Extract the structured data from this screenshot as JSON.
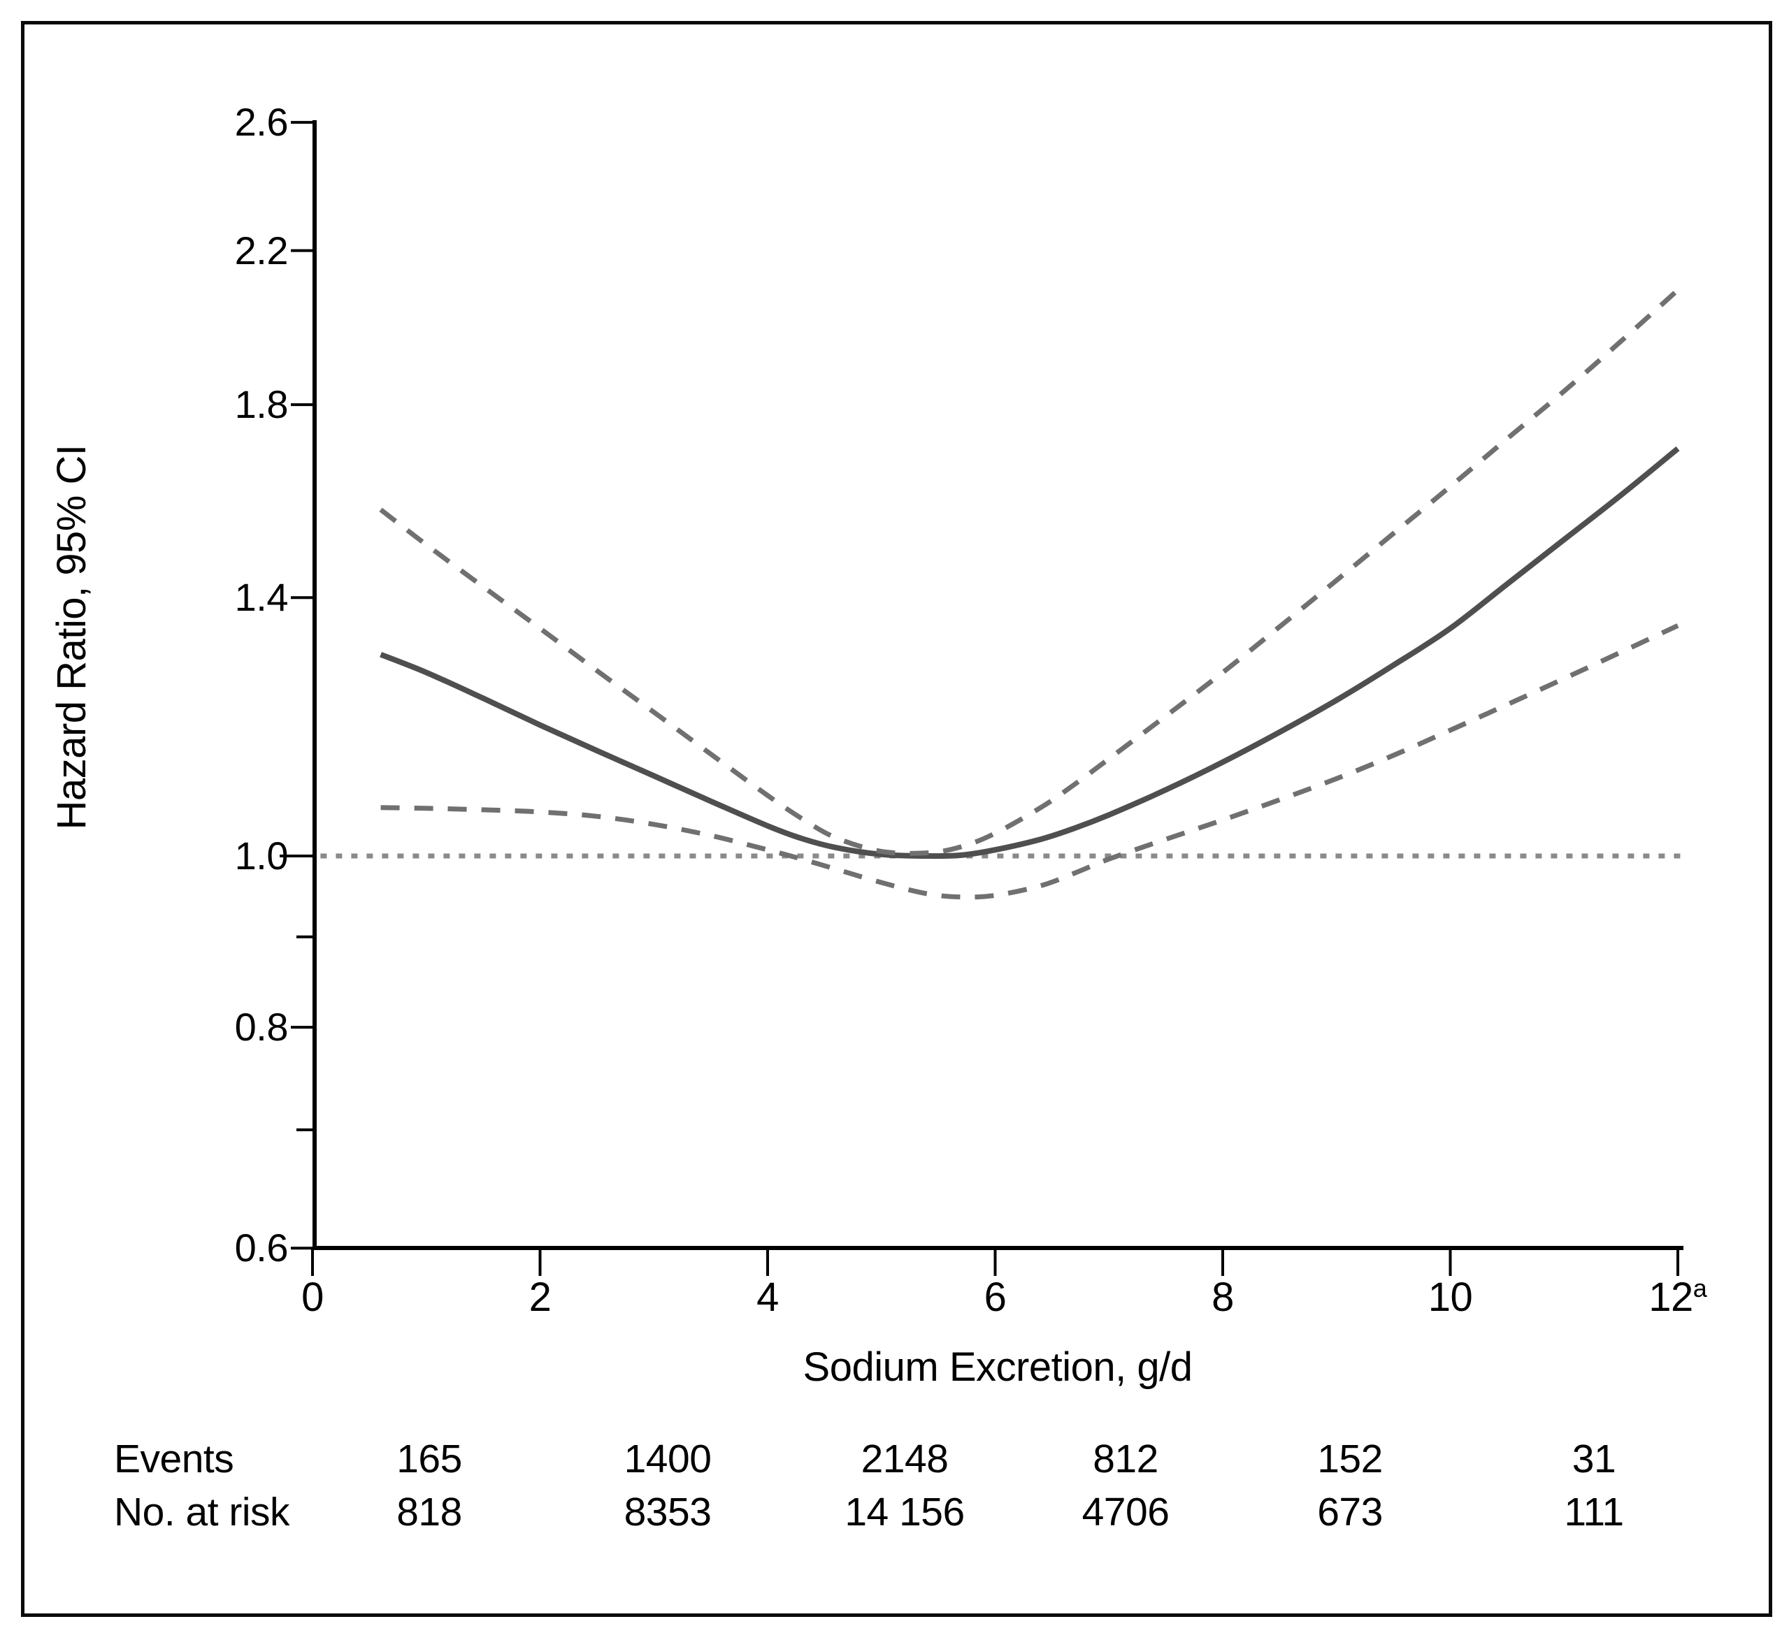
{
  "figure": {
    "background": "#ffffff",
    "border_color": "#0b0b0b"
  },
  "chart_data": {
    "type": "line",
    "title": "",
    "xlabel": "Sodium Excretion, g/d",
    "ylabel": "Hazard Ratio, 95% CI",
    "xlim": [
      0,
      12.1
    ],
    "ylim": [
      0.6,
      2.6
    ],
    "y_scale": "log",
    "grid": false,
    "legend": "none",
    "x_ticks": [
      {
        "v": 0,
        "label": "0"
      },
      {
        "v": 2,
        "label": "2"
      },
      {
        "v": 4,
        "label": "4"
      },
      {
        "v": 6,
        "label": "6"
      },
      {
        "v": 8,
        "label": "8"
      },
      {
        "v": 10,
        "label": "10"
      },
      {
        "v": 12,
        "label": "12",
        "sup": "a"
      }
    ],
    "y_ticks": [
      {
        "v": 2.6,
        "label": "2.6"
      },
      {
        "v": 2.2,
        "label": "2.2"
      },
      {
        "v": 1.8,
        "label": "1.8"
      },
      {
        "v": 1.4,
        "label": "1.4"
      },
      {
        "v": 1.0,
        "label": "1.0"
      },
      {
        "v": 0.8,
        "label": "0.8"
      },
      {
        "v": 0.6,
        "label": "0.6"
      }
    ],
    "y_minor_ticks": [
      0.9,
      0.7
    ],
    "reference_line": {
      "value": 1.0,
      "style": "dotted",
      "x_start": 0.07,
      "x_end": 12.05,
      "color": "#8a8a8a"
    },
    "x": [
      0.6,
      1,
      1.5,
      2,
      2.5,
      3,
      3.5,
      4,
      4.3,
      4.6,
      5,
      5.4,
      5.7,
      6,
      6.4,
      6.7,
      7,
      7.5,
      8,
      8.5,
      9,
      9.5,
      10,
      10.5,
      11,
      11.5,
      12
    ],
    "series": [
      {
        "name": "Hazard ratio (point estimate)",
        "style": "solid",
        "color": "#4f4f4f",
        "values": [
          1.3,
          1.27,
          1.228,
          1.186,
          1.147,
          1.11,
          1.074,
          1.04,
          1.023,
          1.011,
          1.002,
          1.0,
          1.001,
          1.008,
          1.022,
          1.037,
          1.055,
          1.09,
          1.13,
          1.175,
          1.225,
          1.282,
          1.345,
          1.425,
          1.51,
          1.6,
          1.7
        ]
      },
      {
        "name": "Upper 95% CI",
        "style": "dashed",
        "color": "#707070",
        "values": [
          1.57,
          1.5,
          1.42,
          1.345,
          1.273,
          1.206,
          1.142,
          1.082,
          1.05,
          1.024,
          1.006,
          1.004,
          1.012,
          1.03,
          1.065,
          1.098,
          1.135,
          1.2,
          1.27,
          1.348,
          1.432,
          1.522,
          1.618,
          1.722,
          1.832,
          1.955,
          2.09
        ]
      },
      {
        "name": "Lower 95% CI",
        "style": "dashed",
        "color": "#707070",
        "values": [
          1.065,
          1.064,
          1.062,
          1.059,
          1.053,
          1.042,
          1.027,
          1.008,
          0.996,
          0.983,
          0.966,
          0.952,
          0.948,
          0.95,
          0.962,
          0.978,
          0.996,
          1.022,
          1.048,
          1.076,
          1.106,
          1.14,
          1.178,
          1.218,
          1.26,
          1.304,
          1.35
        ]
      }
    ]
  },
  "risk_table": {
    "rows": [
      {
        "label": "Events",
        "values": [
          "165",
          "1400",
          "2148",
          "812",
          "152",
          "31"
        ]
      },
      {
        "label": "No. at risk",
        "values": [
          "818",
          "8353",
          "14 156",
          "4706",
          "673",
          "111"
        ]
      }
    ]
  }
}
